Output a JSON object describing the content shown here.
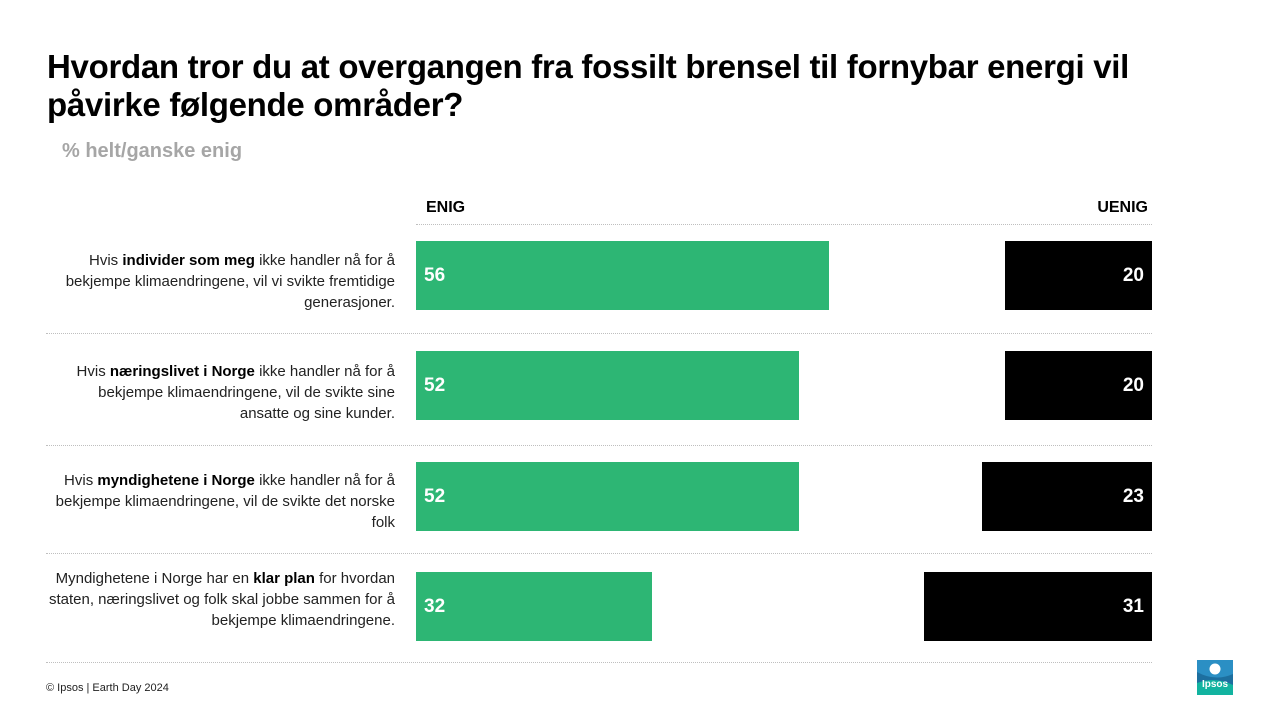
{
  "title": "Hvordan tror du at overgangen fra fossilt brensel til fornybar energi vil påvirke følgende områder?",
  "subtitle": "% helt/ganske enig",
  "footer": "© Ipsos | Earth Day 2024",
  "logo_text": "Ipsos",
  "colors": {
    "agree": "#2db674",
    "disagree": "#000000"
  },
  "chart_data": {
    "type": "bar",
    "orientation": "horizontal",
    "series": [
      {
        "name": "ENIG",
        "values": [
          56,
          52,
          52,
          32
        ]
      },
      {
        "name": "UENIG",
        "values": [
          20,
          20,
          23,
          31
        ]
      }
    ],
    "categories": [
      {
        "pre": "Hvis ",
        "bold": "individer som meg",
        "post": " ikke handler nå for å bekjempe klimaendringene,  vil vi svikte fremtidige  generasjoner."
      },
      {
        "pre": "Hvis ",
        "bold": "næringslivet  i Norge",
        "post": " ikke handler nå for å bekjempe klimaendringene,  vil de svikte sine ansatte og sine kunder."
      },
      {
        "pre": "Hvis ",
        "bold": "myndighetene  i Norge",
        "post": " ikke handler nå for å bekjempe klimaendringene,  vil de svikte det norske folk"
      },
      {
        "pre": "Myndighetene  i Norge har en ",
        "bold": "klar plan",
        "post": " for hvordan staten, næringslivet  og folk skal jobbe sammen for å bekjempe klimaendringene."
      }
    ]
  }
}
